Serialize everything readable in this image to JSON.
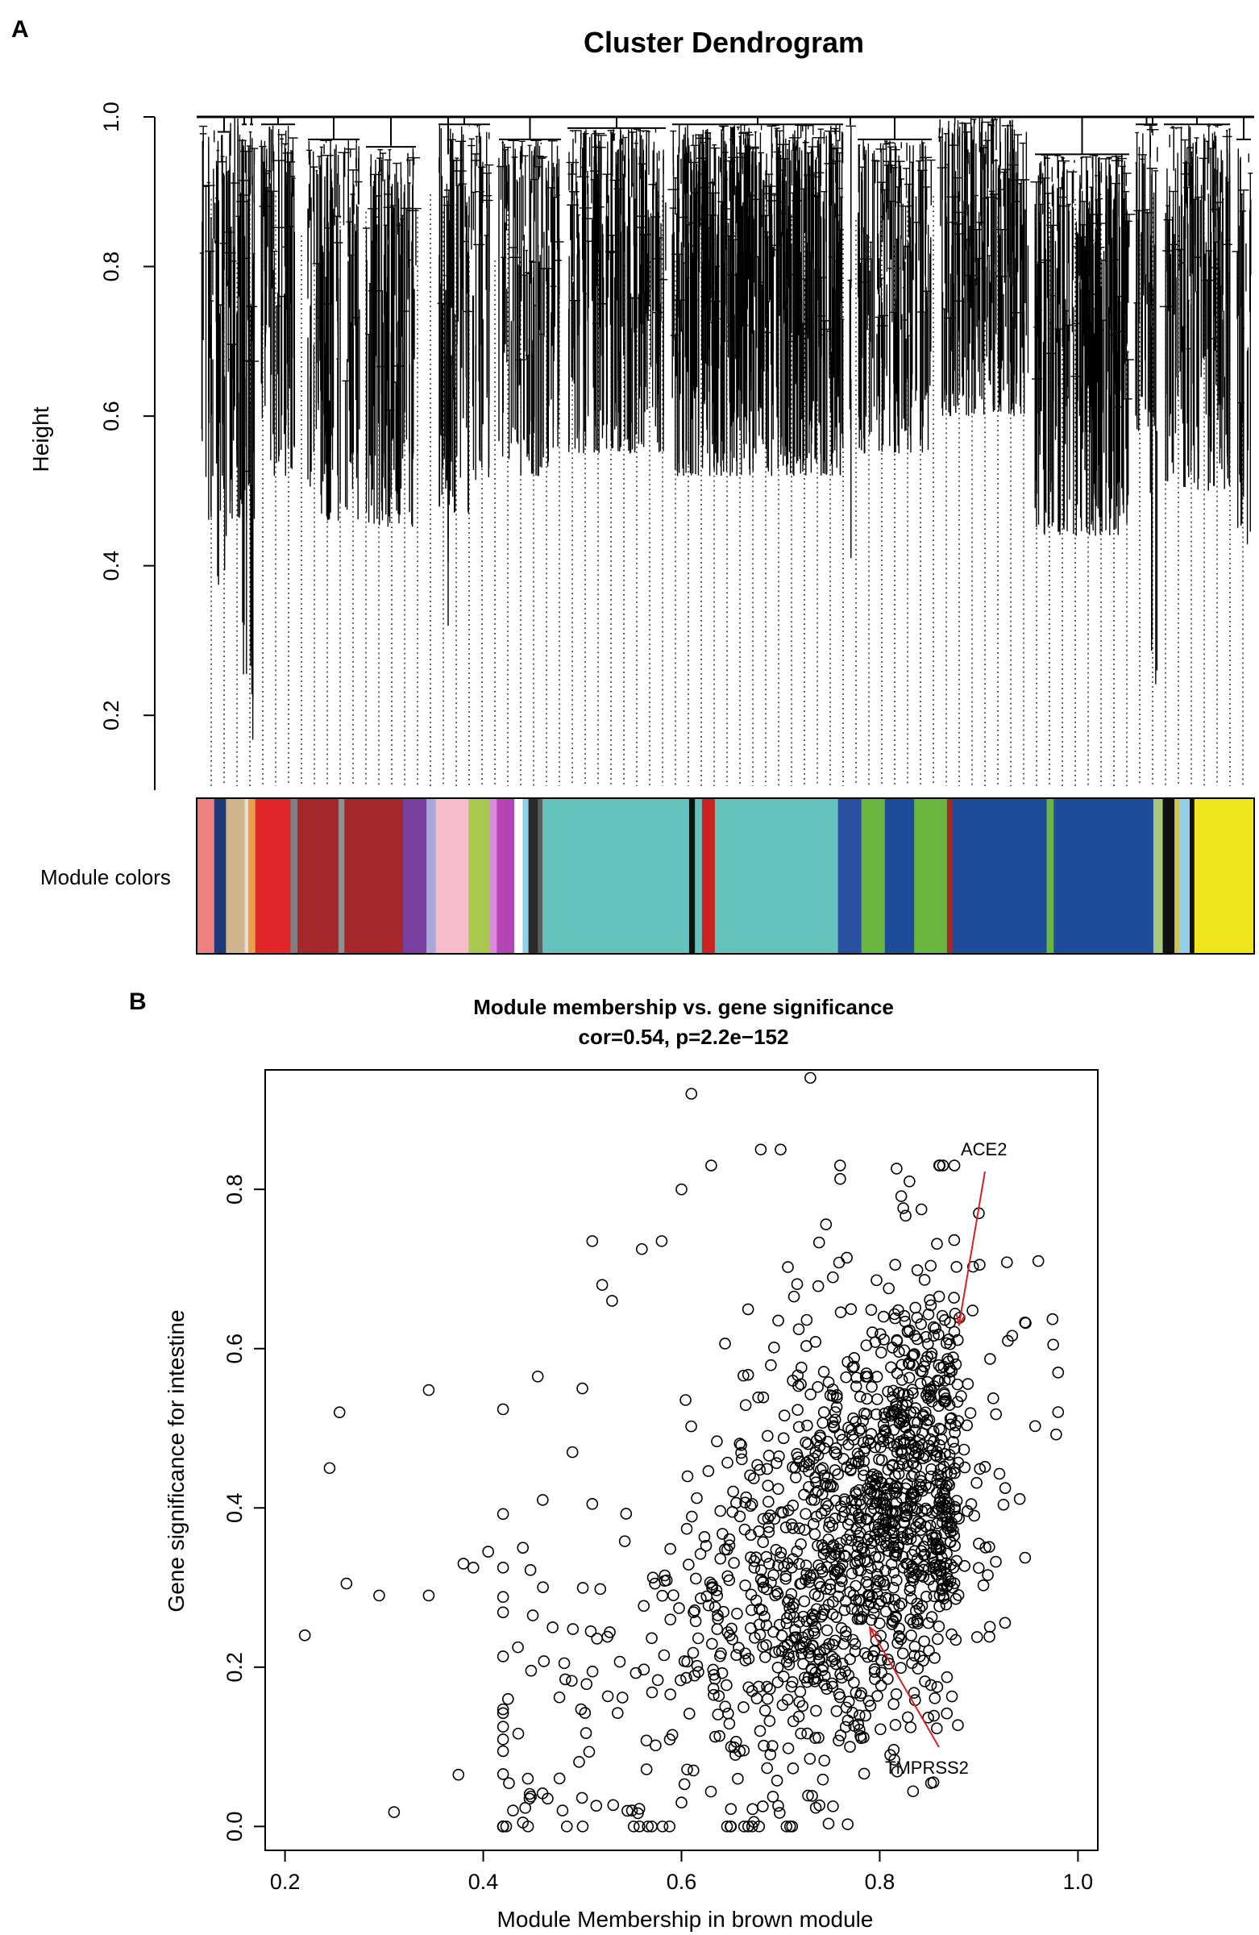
{
  "panel_a": {
    "letter": "A",
    "module_colors_label": "Module colors"
  },
  "panel_b": {
    "letter": "B"
  },
  "chart_data": [
    {
      "type": "dendrogram",
      "title": "Cluster Dendrogram",
      "xlabel": "",
      "ylabel": "Height",
      "ylim": [
        0.1,
        1.0
      ],
      "yticks": [
        0.2,
        0.4,
        0.6,
        0.8,
        1.0
      ],
      "ytick_labels": [
        "0.2",
        "0.4",
        "0.6",
        "0.8",
        "1.0"
      ],
      "root_height": 1.0,
      "module_colors": [
        {
          "color": "#f08080",
          "share": 1.5
        },
        {
          "color": "#1f3a7a",
          "share": 1.0
        },
        {
          "color": "#d2b48c",
          "share": 1.6
        },
        {
          "color": "#e0e0e0",
          "share": 0.3
        },
        {
          "color": "#e8a050",
          "share": 0.6
        },
        {
          "color": "#e3262b",
          "share": 3.0
        },
        {
          "color": "#808080",
          "share": 0.6
        },
        {
          "color": "#a5282b",
          "share": 3.5
        },
        {
          "color": "#909090",
          "share": 0.5
        },
        {
          "color": "#a5282b",
          "share": 5.0
        },
        {
          "color": "#7b3fa0",
          "share": 2.0
        },
        {
          "color": "#a9a9d8",
          "share": 0.8
        },
        {
          "color": "#f6bcc9",
          "share": 2.8
        },
        {
          "color": "#a8c84f",
          "share": 1.8
        },
        {
          "color": "#d98ad9",
          "share": 0.6
        },
        {
          "color": "#b545b5",
          "share": 1.5
        },
        {
          "color": "#ffffff",
          "share": 0.7
        },
        {
          "color": "#90d0e8",
          "share": 0.5
        },
        {
          "color": "#2a2a2a",
          "share": 0.8
        },
        {
          "color": "#5c5c5c",
          "share": 0.4
        },
        {
          "color": "#65c3bd",
          "share": 12.5
        },
        {
          "color": "#111111",
          "share": 0.5
        },
        {
          "color": "#65c3bd",
          "share": 0.6
        },
        {
          "color": "#cc2222",
          "share": 1.1
        },
        {
          "color": "#65c3bd",
          "share": 10.5
        },
        {
          "color": "#2a50a0",
          "share": 2.0
        },
        {
          "color": "#6ab640",
          "share": 2.0
        },
        {
          "color": "#1e4c9a",
          "share": 2.5
        },
        {
          "color": "#6ab640",
          "share": 2.8
        },
        {
          "color": "#a5282b",
          "share": 0.5
        },
        {
          "color": "#1e4c9a",
          "share": 8.0
        },
        {
          "color": "#6ab640",
          "share": 0.6
        },
        {
          "color": "#1e4c9a",
          "share": 8.5
        },
        {
          "color": "#a8c880",
          "share": 0.8
        },
        {
          "color": "#111111",
          "share": 1.0
        },
        {
          "color": "#d4c04a",
          "share": 0.4
        },
        {
          "color": "#90d0e8",
          "share": 0.9
        },
        {
          "color": "#111111",
          "share": 0.4
        },
        {
          "color": "#f0e51a",
          "share": 5.1
        }
      ]
    },
    {
      "type": "scatter",
      "title": "Module membership vs. gene significance",
      "subtitle": "cor=0.54, p=2.2e−152",
      "xlabel": "Module Membership in brown module",
      "ylabel": "Gene significance for intestine",
      "xlim": [
        0.18,
        1.02
      ],
      "ylim": [
        -0.03,
        0.95
      ],
      "xticks": [
        0.2,
        0.4,
        0.6,
        0.8,
        1.0
      ],
      "xtick_labels": [
        "0.2",
        "0.4",
        "0.6",
        "0.8",
        "1.0"
      ],
      "yticks": [
        0.0,
        0.2,
        0.4,
        0.6,
        0.8
      ],
      "ytick_labels": [
        "0.0",
        "0.2",
        "0.4",
        "0.6",
        "0.8"
      ],
      "marker": "open-circle",
      "n_points": 1450,
      "correlation": 0.54,
      "points_listed": [
        [
          0.22,
          0.24
        ],
        [
          0.245,
          0.45
        ],
        [
          0.255,
          0.52
        ],
        [
          0.262,
          0.305
        ],
        [
          0.295,
          0.29
        ],
        [
          0.31,
          0.018
        ],
        [
          0.345,
          0.548
        ],
        [
          0.345,
          0.29
        ],
        [
          0.375,
          0.065
        ],
        [
          0.38,
          0.33
        ],
        [
          0.39,
          0.325
        ],
        [
          0.405,
          0.345
        ],
        [
          0.425,
          0.16
        ],
        [
          0.43,
          0.02
        ],
        [
          0.435,
          0.225
        ],
        [
          0.44,
          0.005
        ],
        [
          0.44,
          0.35
        ],
        [
          0.445,
          0.06
        ],
        [
          0.45,
          0.265
        ],
        [
          0.455,
          0.565
        ],
        [
          0.46,
          0.41
        ],
        [
          0.465,
          0.035
        ],
        [
          0.47,
          0.25
        ],
        [
          0.48,
          0.02
        ],
        [
          0.49,
          0.47
        ],
        [
          0.5,
          0.55
        ],
        [
          0.51,
          0.405
        ],
        [
          0.51,
          0.735
        ],
        [
          0.52,
          0.68
        ],
        [
          0.53,
          0.66
        ],
        [
          0.56,
          0.725
        ],
        [
          0.57,
          0.0
        ],
        [
          0.58,
          0.735
        ],
        [
          0.61,
          0.92
        ],
        [
          0.6,
          0.8
        ],
        [
          0.63,
          0.83
        ],
        [
          0.68,
          0.85
        ],
        [
          0.7,
          0.85
        ],
        [
          0.73,
          0.94
        ],
        [
          0.76,
          0.83
        ],
        [
          0.77,
          0.1
        ],
        [
          0.83,
          0.81
        ],
        [
          0.86,
          0.83
        ],
        [
          0.9,
          0.77
        ],
        [
          0.96,
          0.71
        ],
        [
          0.975,
          0.605
        ],
        [
          0.98,
          0.57
        ],
        [
          0.55,
          0.02
        ],
        [
          0.6,
          0.03
        ],
        [
          0.65,
          0.1
        ]
      ],
      "annotations": [
        {
          "label": "ACE2",
          "point": [
            0.88,
            0.63
          ]
        },
        {
          "label": "TMPRSS2",
          "point": [
            0.79,
            0.25
          ]
        }
      ],
      "arrow_color": "#d62020"
    }
  ]
}
